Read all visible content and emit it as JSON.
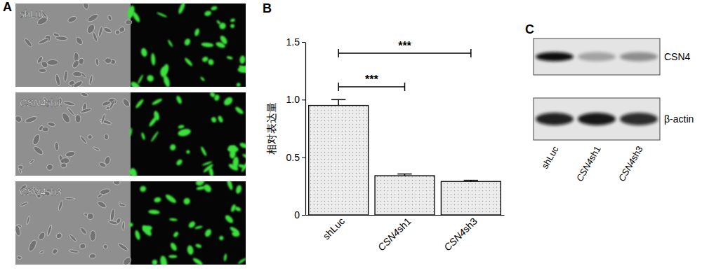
{
  "panel_labels": [
    "A",
    "B",
    "C"
  ],
  "images": {
    "rows": [
      "shLuc",
      "CSN4sh1",
      "CSN4sh3"
    ]
  },
  "chart_data": {
    "type": "bar",
    "y_label": "相对表达量",
    "categories": [
      "shLuc",
      "CSN4sh1",
      "CSN4sh3"
    ],
    "values": [
      0.95,
      0.34,
      0.29
    ],
    "errors": [
      0.05,
      0.015,
      0.01
    ],
    "color": "#ececec",
    "ylim": [
      0,
      1.5
    ],
    "yticks": [
      0,
      0.5,
      {
        "value": 1,
        "label": "1.0"
      },
      1.5
    ],
    "annotations": [
      {
        "text": "***",
        "between": [
          "shLuc",
          "CSN4sh1"
        ]
      },
      {
        "text": "***",
        "between": [
          "shLuc",
          "CSN4sh3"
        ]
      }
    ]
  },
  "blot": {
    "lanes": [
      "shLuc",
      "CSN4sh1",
      "CSN4sh3"
    ],
    "bands": [
      {
        "name": "CSN4",
        "intensity": [
          1,
          0.3,
          0.4
        ]
      },
      {
        "name": "β-actin",
        "intensity": [
          0.9,
          0.95,
          0.85
        ]
      }
    ]
  }
}
